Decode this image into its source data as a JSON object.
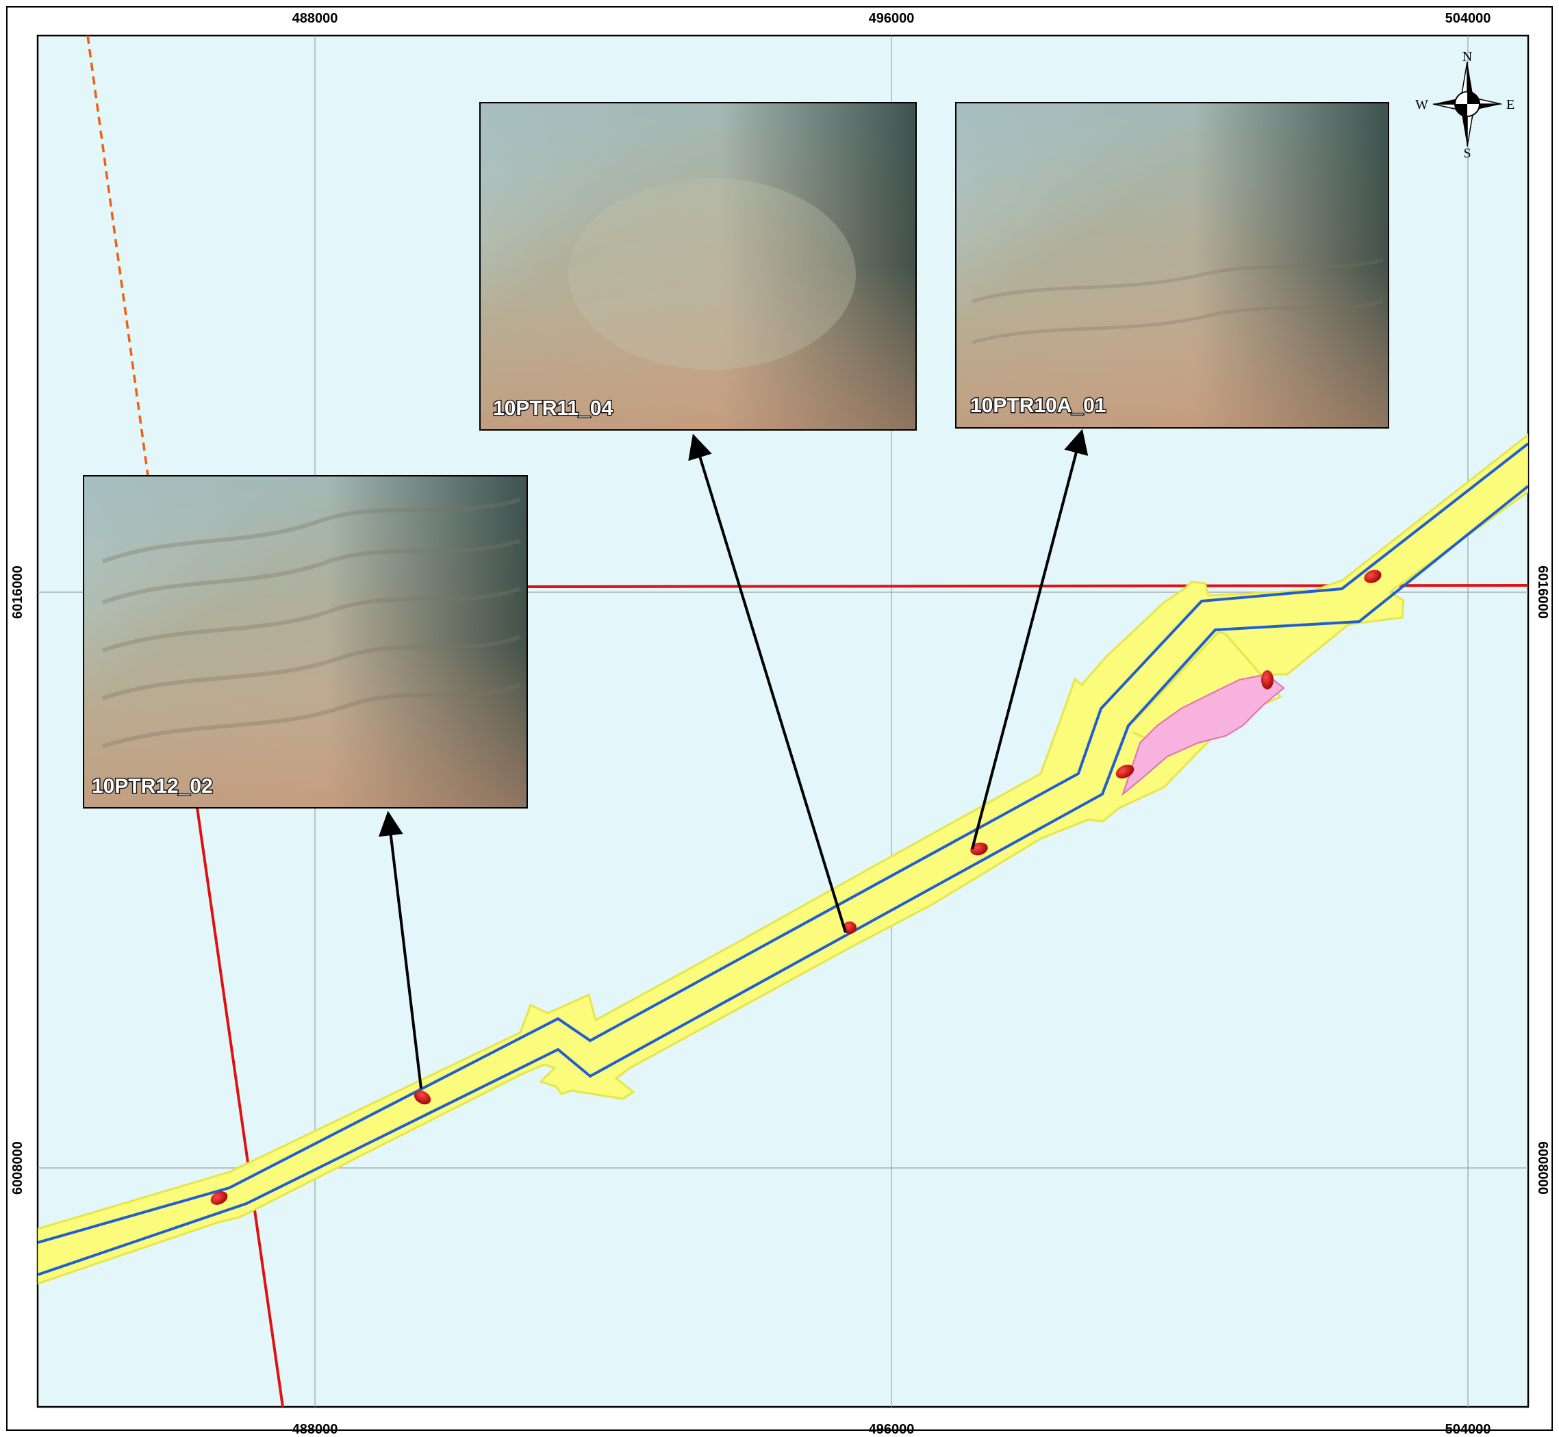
{
  "map": {
    "easting_ticks": [
      "488000",
      "496000",
      "504000"
    ],
    "northing_ticks": [
      "6016000",
      "6008000"
    ],
    "photos": [
      {
        "label": "10PTR12_02"
      },
      {
        "label": "10PTR11_04"
      },
      {
        "label": "10PTR10A_01"
      }
    ],
    "compass": {
      "n": "N",
      "s": "S",
      "e": "E",
      "w": "W"
    },
    "colors": {
      "sea": "#e3f7fb",
      "corridor_fill": "#fbfb7c",
      "corridor_edge": "#e6e64a",
      "route_line": "#1f5fd0",
      "red_line": "#e01010",
      "orange_dashed": "#f06010",
      "pink_area": "#f7b2dd",
      "sample_point": "#e01010",
      "grid": "#9aa3a6"
    }
  }
}
